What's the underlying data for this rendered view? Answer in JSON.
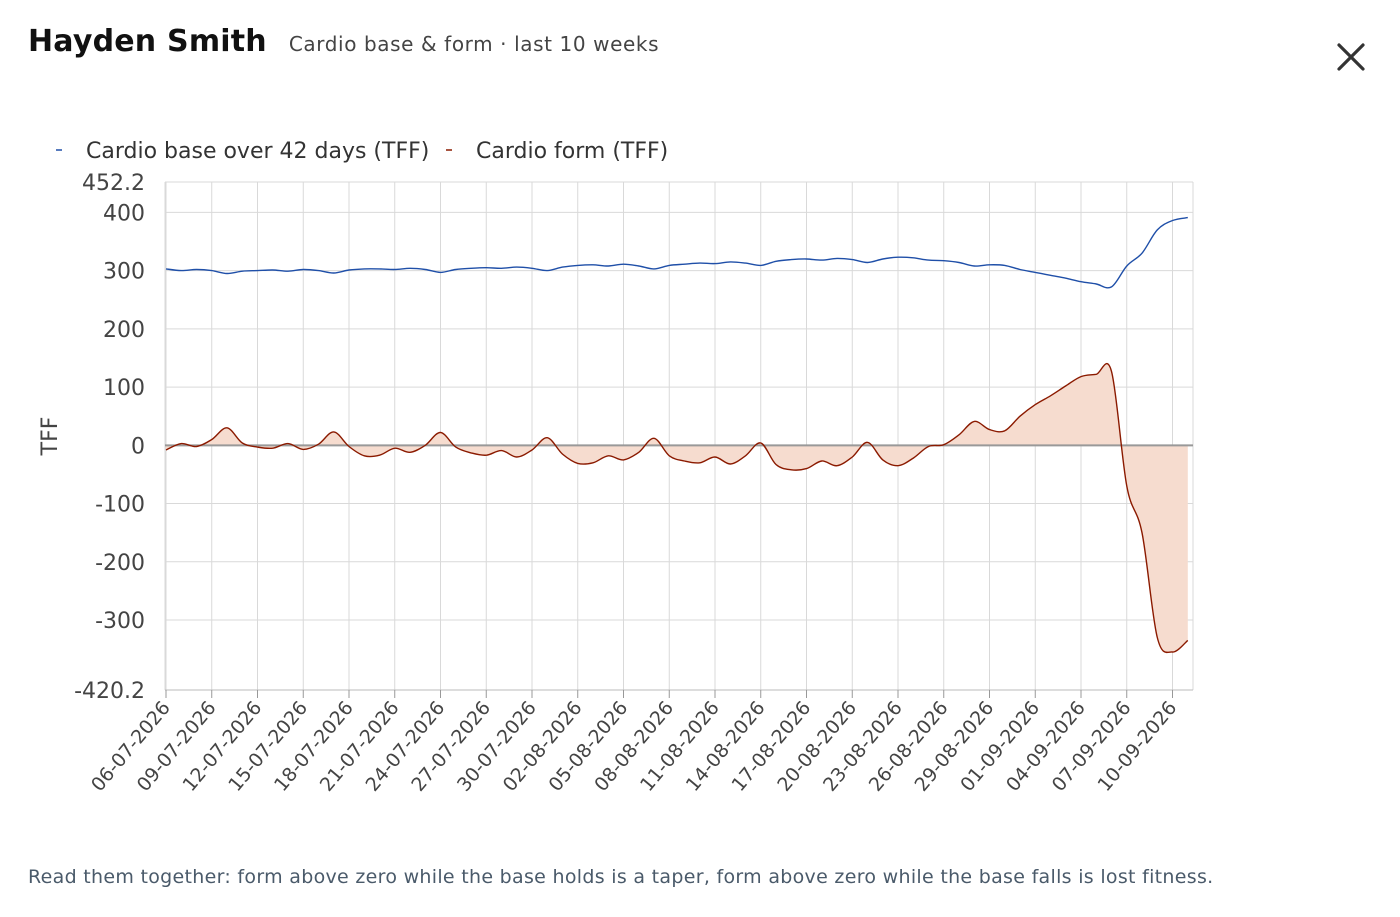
{
  "header": {
    "title": "Hayden Smith",
    "subtitle": "Cardio base & form · last 10 weeks"
  },
  "close_icon": "close-icon",
  "footer": {
    "note": "Read them together: form above zero while the base holds is a taper, form above zero while the base falls is lost fitness."
  },
  "colors": {
    "base_line": "#1f4fa8",
    "form_line": "#8b1a00",
    "form_fill": "#f6dccf",
    "grid": "#d9d9d9",
    "zero_line": "#999999"
  },
  "chart_data": {
    "type": "line",
    "title": "",
    "xlabel": "",
    "ylabel": "TFF",
    "ylim": [
      -420.2,
      452.2
    ],
    "yticks": [
      "452.2",
      "400",
      "300",
      "200",
      "100",
      "0",
      "-100",
      "-200",
      "-300",
      "-420.2"
    ],
    "grid": true,
    "legend_position": "top-left",
    "x_labels": [
      "06-07-2026",
      "09-07-2026",
      "12-07-2026",
      "15-07-2026",
      "18-07-2026",
      "21-07-2026",
      "24-07-2026",
      "27-07-2026",
      "30-07-2026",
      "02-08-2026",
      "05-08-2026",
      "08-08-2026",
      "11-08-2026",
      "14-08-2026",
      "17-08-2026",
      "20-08-2026",
      "23-08-2026",
      "26-08-2026",
      "29-08-2026",
      "01-09-2026",
      "04-09-2026",
      "07-09-2026",
      "10-09-2026"
    ],
    "series": [
      {
        "name": "Cardio base over 42 days (TFF)",
        "values": [
          {
            "x": "06-07-2026",
            "y": 303
          },
          {
            "x": "07-07-2026",
            "y": 300
          },
          {
            "x": "08-07-2026",
            "y": 302
          },
          {
            "x": "09-07-2026",
            "y": 300
          },
          {
            "x": "10-07-2026",
            "y": 295
          },
          {
            "x": "11-07-2026",
            "y": 299
          },
          {
            "x": "12-07-2026",
            "y": 300
          },
          {
            "x": "13-07-2026",
            "y": 301
          },
          {
            "x": "14-07-2026",
            "y": 299
          },
          {
            "x": "15-07-2026",
            "y": 302
          },
          {
            "x": "16-07-2026",
            "y": 300
          },
          {
            "x": "17-07-2026",
            "y": 296
          },
          {
            "x": "18-07-2026",
            "y": 301
          },
          {
            "x": "19-07-2026",
            "y": 303
          },
          {
            "x": "20-07-2026",
            "y": 303
          },
          {
            "x": "21-07-2026",
            "y": 302
          },
          {
            "x": "22-07-2026",
            "y": 304
          },
          {
            "x": "23-07-2026",
            "y": 302
          },
          {
            "x": "24-07-2026",
            "y": 297
          },
          {
            "x": "25-07-2026",
            "y": 302
          },
          {
            "x": "26-07-2026",
            "y": 304
          },
          {
            "x": "27-07-2026",
            "y": 305
          },
          {
            "x": "28-07-2026",
            "y": 304
          },
          {
            "x": "29-07-2026",
            "y": 306
          },
          {
            "x": "30-07-2026",
            "y": 304
          },
          {
            "x": "31-07-2026",
            "y": 300
          },
          {
            "x": "01-08-2026",
            "y": 306
          },
          {
            "x": "02-08-2026",
            "y": 309
          },
          {
            "x": "03-08-2026",
            "y": 310
          },
          {
            "x": "04-08-2026",
            "y": 308
          },
          {
            "x": "05-08-2026",
            "y": 311
          },
          {
            "x": "06-08-2026",
            "y": 308
          },
          {
            "x": "07-08-2026",
            "y": 303
          },
          {
            "x": "08-08-2026",
            "y": 309
          },
          {
            "x": "09-08-2026",
            "y": 311
          },
          {
            "x": "10-08-2026",
            "y": 313
          },
          {
            "x": "11-08-2026",
            "y": 312
          },
          {
            "x": "12-08-2026",
            "y": 315
          },
          {
            "x": "13-08-2026",
            "y": 313
          },
          {
            "x": "14-08-2026",
            "y": 309
          },
          {
            "x": "15-08-2026",
            "y": 316
          },
          {
            "x": "16-08-2026",
            "y": 319
          },
          {
            "x": "17-08-2026",
            "y": 320
          },
          {
            "x": "18-08-2026",
            "y": 318
          },
          {
            "x": "19-08-2026",
            "y": 321
          },
          {
            "x": "20-08-2026",
            "y": 319
          },
          {
            "x": "21-08-2026",
            "y": 314
          },
          {
            "x": "22-08-2026",
            "y": 320
          },
          {
            "x": "23-08-2026",
            "y": 323
          },
          {
            "x": "24-08-2026",
            "y": 322
          },
          {
            "x": "25-08-2026",
            "y": 318
          },
          {
            "x": "26-08-2026",
            "y": 317
          },
          {
            "x": "27-08-2026",
            "y": 314
          },
          {
            "x": "28-08-2026",
            "y": 308
          },
          {
            "x": "29-08-2026",
            "y": 310
          },
          {
            "x": "30-08-2026",
            "y": 309
          },
          {
            "x": "31-08-2026",
            "y": 302
          },
          {
            "x": "01-09-2026",
            "y": 297
          },
          {
            "x": "02-09-2026",
            "y": 292
          },
          {
            "x": "03-09-2026",
            "y": 287
          },
          {
            "x": "04-09-2026",
            "y": 281
          },
          {
            "x": "05-09-2026",
            "y": 277
          },
          {
            "x": "06-09-2026",
            "y": 272
          },
          {
            "x": "07-09-2026",
            "y": 308
          },
          {
            "x": "08-09-2026",
            "y": 330
          },
          {
            "x": "09-09-2026",
            "y": 370
          },
          {
            "x": "10-09-2026",
            "y": 386
          },
          {
            "x": "11-09-2026",
            "y": 391
          }
        ]
      },
      {
        "name": "Cardio form (TFF)",
        "values": [
          {
            "x": "06-07-2026",
            "y": -8
          },
          {
            "x": "07-07-2026",
            "y": 3
          },
          {
            "x": "08-07-2026",
            "y": -2
          },
          {
            "x": "09-07-2026",
            "y": 10
          },
          {
            "x": "10-07-2026",
            "y": 30
          },
          {
            "x": "11-07-2026",
            "y": 4
          },
          {
            "x": "12-07-2026",
            "y": -3
          },
          {
            "x": "13-07-2026",
            "y": -5
          },
          {
            "x": "14-07-2026",
            "y": 3
          },
          {
            "x": "15-07-2026",
            "y": -7
          },
          {
            "x": "16-07-2026",
            "y": 2
          },
          {
            "x": "17-07-2026",
            "y": 23
          },
          {
            "x": "18-07-2026",
            "y": -2
          },
          {
            "x": "19-07-2026",
            "y": -18
          },
          {
            "x": "20-07-2026",
            "y": -17
          },
          {
            "x": "21-07-2026",
            "y": -5
          },
          {
            "x": "22-07-2026",
            "y": -12
          },
          {
            "x": "23-07-2026",
            "y": 0
          },
          {
            "x": "24-07-2026",
            "y": 22
          },
          {
            "x": "25-07-2026",
            "y": -3
          },
          {
            "x": "26-07-2026",
            "y": -13
          },
          {
            "x": "27-07-2026",
            "y": -17
          },
          {
            "x": "28-07-2026",
            "y": -9
          },
          {
            "x": "29-07-2026",
            "y": -20
          },
          {
            "x": "30-07-2026",
            "y": -8
          },
          {
            "x": "31-07-2026",
            "y": 13
          },
          {
            "x": "01-08-2026",
            "y": -15
          },
          {
            "x": "02-08-2026",
            "y": -31
          },
          {
            "x": "03-08-2026",
            "y": -30
          },
          {
            "x": "04-08-2026",
            "y": -18
          },
          {
            "x": "05-08-2026",
            "y": -25
          },
          {
            "x": "06-08-2026",
            "y": -12
          },
          {
            "x": "07-08-2026",
            "y": 12
          },
          {
            "x": "08-08-2026",
            "y": -18
          },
          {
            "x": "09-08-2026",
            "y": -27
          },
          {
            "x": "10-08-2026",
            "y": -30
          },
          {
            "x": "11-08-2026",
            "y": -20
          },
          {
            "x": "12-08-2026",
            "y": -32
          },
          {
            "x": "13-08-2026",
            "y": -18
          },
          {
            "x": "14-08-2026",
            "y": 4
          },
          {
            "x": "15-08-2026",
            "y": -33
          },
          {
            "x": "16-08-2026",
            "y": -42
          },
          {
            "x": "17-08-2026",
            "y": -40
          },
          {
            "x": "18-08-2026",
            "y": -27
          },
          {
            "x": "19-08-2026",
            "y": -35
          },
          {
            "x": "20-08-2026",
            "y": -20
          },
          {
            "x": "21-08-2026",
            "y": 5
          },
          {
            "x": "22-08-2026",
            "y": -25
          },
          {
            "x": "23-08-2026",
            "y": -35
          },
          {
            "x": "24-08-2026",
            "y": -22
          },
          {
            "x": "25-08-2026",
            "y": -2
          },
          {
            "x": "26-08-2026",
            "y": 1
          },
          {
            "x": "27-08-2026",
            "y": 18
          },
          {
            "x": "28-08-2026",
            "y": 41
          },
          {
            "x": "29-08-2026",
            "y": 27
          },
          {
            "x": "30-08-2026",
            "y": 25
          },
          {
            "x": "31-08-2026",
            "y": 50
          },
          {
            "x": "01-09-2026",
            "y": 70
          },
          {
            "x": "02-09-2026",
            "y": 85
          },
          {
            "x": "03-09-2026",
            "y": 102
          },
          {
            "x": "04-09-2026",
            "y": 118
          },
          {
            "x": "05-09-2026",
            "y": 122
          },
          {
            "x": "06-09-2026",
            "y": 127
          },
          {
            "x": "07-09-2026",
            "y": -70
          },
          {
            "x": "08-09-2026",
            "y": -150
          },
          {
            "x": "09-09-2026",
            "y": -330
          },
          {
            "x": "10-09-2026",
            "y": -355
          },
          {
            "x": "11-09-2026",
            "y": -335
          }
        ]
      }
    ]
  }
}
